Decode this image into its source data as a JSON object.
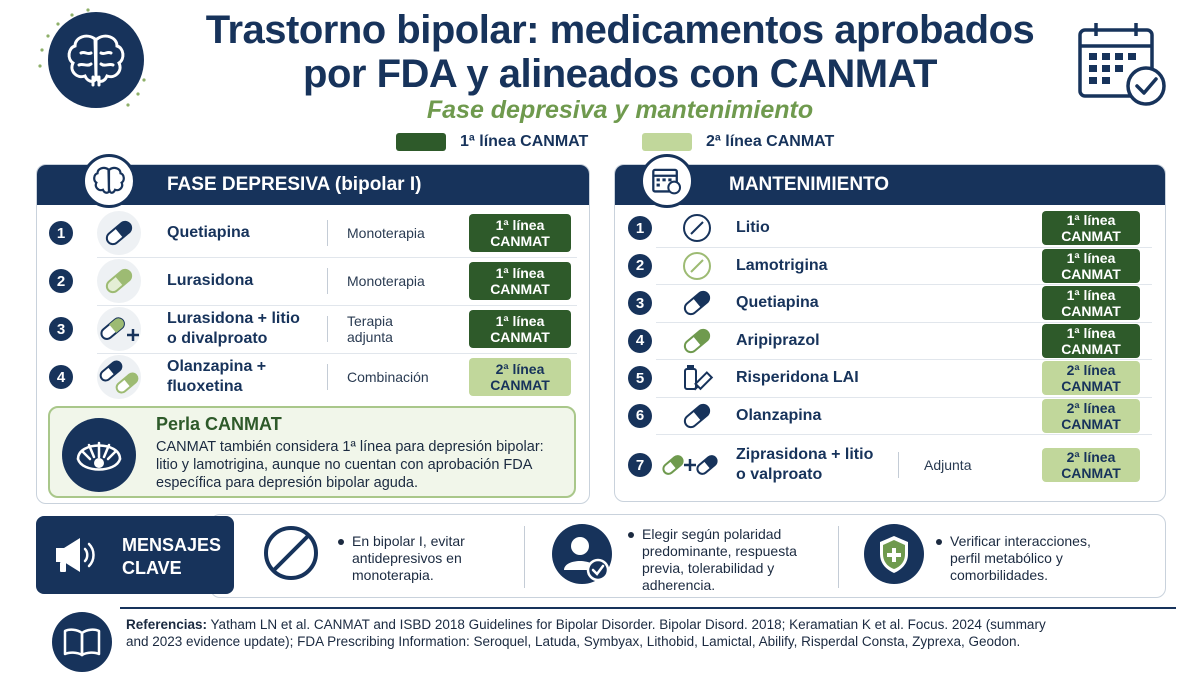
{
  "header": {
    "title_line1": "Trastorno bipolar: medicamentos aprobados",
    "title_line2": "por FDA y alineados con CANMAT",
    "subtitle": "Fase depresiva y mantenimiento"
  },
  "legend": [
    {
      "label": "1ª línea CANMAT",
      "color": "#2e5a2a"
    },
    {
      "label": "2ª línea CANMAT",
      "color": "#c1d79b"
    }
  ],
  "depressive": {
    "title": "FASE DEPRESIVA (bipolar I)",
    "rows": [
      {
        "num": "1",
        "drug_l1": "Quetiapina",
        "drug_l2": "",
        "mode": "Monoterapia",
        "badge_l1": "1ª línea",
        "badge_l2": "CANMAT",
        "tier": 1,
        "icon": "capsule-navy-icon"
      },
      {
        "num": "2",
        "drug_l1": "Lurasidona",
        "drug_l2": "",
        "mode": "Monoterapia",
        "badge_l1": "1ª línea",
        "badge_l2": "CANMAT",
        "tier": 1,
        "icon": "capsule-green-icon"
      },
      {
        "num": "3",
        "drug_l1": "Lurasidona + litio",
        "drug_l2": "o divalproato",
        "mode": "Terapia adjunta",
        "badge_l1": "1ª línea",
        "badge_l2": "CANMAT",
        "tier": 1,
        "icon": "capsule-plus-icon"
      },
      {
        "num": "4",
        "drug_l1": "Olanzapina +",
        "drug_l2": "fluoxetina",
        "mode": "Combinación",
        "badge_l1": "2ª línea",
        "badge_l2": "CANMAT",
        "tier": 2,
        "icon": "two-capsules-icon"
      }
    ],
    "pearl": {
      "title": "Perla CANMAT",
      "line1": "CANMAT también considera 1ª línea para depresión bipolar:",
      "line2": "litio y lamotrigina, aunque no cuentan con aprobación FDA",
      "line3": "específica para depresión bipolar aguda."
    }
  },
  "maintenance": {
    "title": "MANTENIMIENTO",
    "rows": [
      {
        "num": "1",
        "drug_l1": "Litio",
        "drug_l2": "",
        "mode": "",
        "badge_l1": "1ª línea",
        "badge_l2": "CANMAT",
        "tier": 1,
        "icon": "tablet-navy-icon"
      },
      {
        "num": "2",
        "drug_l1": "Lamotrigina",
        "drug_l2": "",
        "mode": "",
        "badge_l1": "1ª línea",
        "badge_l2": "CANMAT",
        "tier": 1,
        "icon": "tablet-green-icon"
      },
      {
        "num": "3",
        "drug_l1": "Quetiapina",
        "drug_l2": "",
        "mode": "",
        "badge_l1": "1ª línea",
        "badge_l2": "CANMAT",
        "tier": 1,
        "icon": "capsule-navy-icon"
      },
      {
        "num": "4",
        "drug_l1": "Aripiprazol",
        "drug_l2": "",
        "mode": "",
        "badge_l1": "1ª línea",
        "badge_l2": "CANMAT",
        "tier": 1,
        "icon": "capsule-green-icon"
      },
      {
        "num": "5",
        "drug_l1": "Risperidona LAI",
        "drug_l2": "",
        "mode": "",
        "badge_l1": "2ª línea",
        "badge_l2": "CANMAT",
        "tier": 2,
        "icon": "vial-syringe-icon"
      },
      {
        "num": "6",
        "drug_l1": "Olanzapina",
        "drug_l2": "",
        "mode": "",
        "badge_l1": "2ª línea",
        "badge_l2": "CANMAT",
        "tier": 2,
        "icon": "capsule-navy-icon"
      },
      {
        "num": "7",
        "drug_l1": "Ziprasidona + litio",
        "drug_l2": "o valproato",
        "mode": "Adjunta",
        "badge_l1": "2ª línea",
        "badge_l2": "CANMAT",
        "tier": 2,
        "icon": "capsule-plus-capsule-icon"
      }
    ]
  },
  "key_messages": {
    "label_l1": "MENSAJES",
    "label_l2": "CLAVE",
    "items": [
      {
        "l1": "En bipolar I, evitar",
        "l2": "antidepresivos en",
        "l3": "monoterapia.",
        "l4": "",
        "icon": "prohibited-icon"
      },
      {
        "l1": "Elegir según polaridad",
        "l2": "predominante, respuesta",
        "l3": "previa, tolerabilidad y",
        "l4": "adherencia.",
        "icon": "person-check-icon"
      },
      {
        "l1": "Verificar interacciones,",
        "l2": "perfil metabólico y",
        "l3": "comorbilidades.",
        "l4": "",
        "icon": "shield-cross-icon"
      }
    ]
  },
  "references": {
    "label": "Referencias:",
    "text": " Yatham LN et al. CANMAT and ISBD 2018 Guidelines for Bipolar Disorder. Bipolar Disord. 2018; Keramatian K et al. Focus. 2024 (summary and 2023 evidence update); FDA Prescribing Information: Seroquel, Latuda, Symbyax, Lithobid, Lamictal, Abilify, Risperdal Consta, Zyprexa, Geodon."
  },
  "colors": {
    "navy": "#17335b",
    "first_line": "#2e5a2a",
    "second_line": "#c1d79b",
    "accent_green": "#6f9a4e"
  }
}
